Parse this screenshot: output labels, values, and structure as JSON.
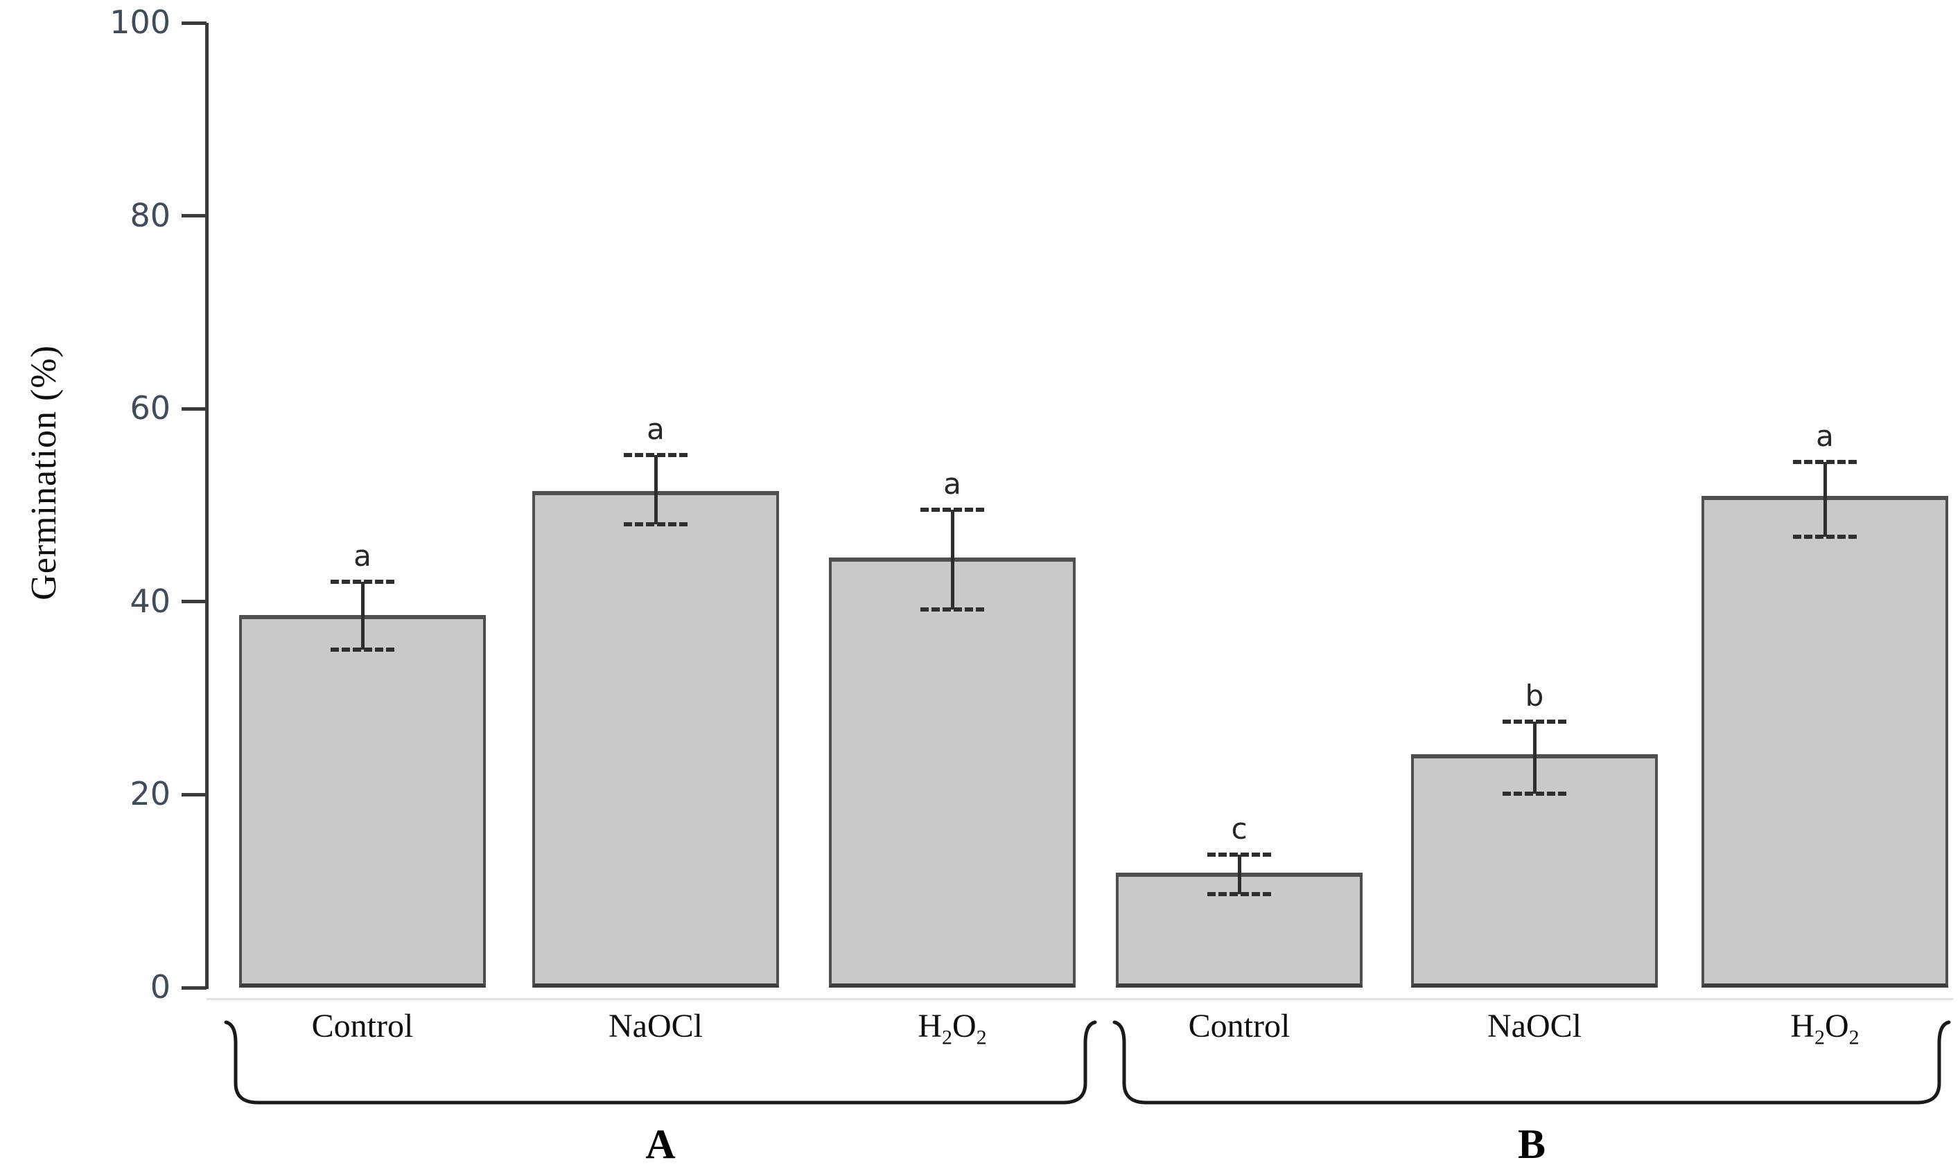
{
  "figure": {
    "ylabel": "Germination (%)",
    "colors": {
      "background": "#ffffff",
      "bar_fill": "#c9c9c9",
      "bar_border": "#4f4f4f",
      "axis": "#3a3a3a",
      "tick_label": "#414b5a",
      "error_bar": "#2e2e2e",
      "annotation": "#262626",
      "bracket": "#1a1a1a",
      "baseline": "#e3e3e3"
    }
  },
  "chart_data": {
    "type": "bar",
    "title": "",
    "xlabel": "",
    "ylabel": "Germination (%)",
    "ylim": [
      0,
      100
    ],
    "yticks": [
      0,
      20,
      40,
      60,
      80,
      100
    ],
    "grid": false,
    "legend": "none",
    "error_bars": true,
    "error_cap_style": "dashed",
    "groups": [
      {
        "group": "A",
        "categories": [
          "Control",
          "NaOCl",
          "H2O2"
        ],
        "values": [
          38.6,
          51.5,
          44.6
        ],
        "error_low": [
          35.0,
          48.0,
          39.2
        ],
        "error_high": [
          42.1,
          55.2,
          49.5
        ],
        "sig_letters": [
          "a",
          "a",
          "a"
        ]
      },
      {
        "group": "B",
        "categories": [
          "Control",
          "NaOCl",
          "H2O2"
        ],
        "values": [
          11.9,
          24.2,
          51.0
        ],
        "error_low": [
          9.7,
          20.1,
          46.7
        ],
        "error_high": [
          13.8,
          27.6,
          54.5
        ],
        "sig_letters": [
          "c",
          "b",
          "a"
        ]
      }
    ]
  }
}
